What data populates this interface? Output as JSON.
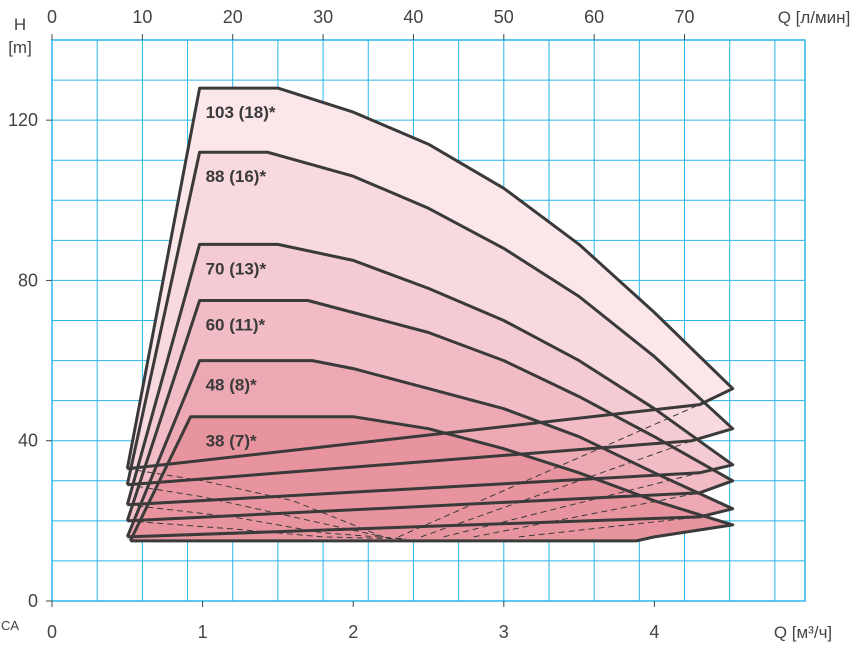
{
  "chart_data": {
    "type": "area",
    "x_label": "Q [м³/ч]",
    "x2_label": "Q [л/мин]",
    "y_label_top": "H",
    "y_label_unit": "[m]",
    "corner_label": "CA",
    "x_range": [
      0,
      5
    ],
    "y_range": [
      0,
      140
    ],
    "x_ticks": [
      "0",
      "1",
      "2",
      "3",
      "4"
    ],
    "x_tick_values": [
      0,
      1,
      2,
      3,
      4
    ],
    "x2_ticks": [
      "0",
      "10",
      "20",
      "30",
      "40",
      "50",
      "60",
      "70"
    ],
    "x2_tick_values": [
      0,
      10,
      20,
      30,
      40,
      50,
      60,
      70
    ],
    "y_ticks": [
      "0",
      "40",
      "80",
      "120"
    ],
    "y_tick_values": [
      0,
      40,
      80,
      120
    ],
    "grid": true,
    "colors": {
      "grid": "#29b6e8",
      "curve": "#3a3a3a",
      "fill_light": "#f8dde3",
      "fill_dark": "#e8909c"
    },
    "series": [
      {
        "name": "103 (18)*",
        "fill": "#fbe6ea",
        "points": [
          [
            0.5,
            33
          ],
          [
            0.98,
            128
          ],
          [
            1.5,
            128
          ],
          [
            2.0,
            122
          ],
          [
            2.5,
            114
          ],
          [
            3.0,
            103
          ],
          [
            3.5,
            89
          ],
          [
            4.0,
            72
          ],
          [
            4.52,
            53
          ],
          [
            4.3,
            49
          ],
          [
            0.5,
            33
          ]
        ]
      },
      {
        "name": "88 (16)*",
        "fill": "#f8d9df",
        "points": [
          [
            0.5,
            29
          ],
          [
            0.98,
            112
          ],
          [
            1.43,
            112
          ],
          [
            2.0,
            106
          ],
          [
            2.5,
            98
          ],
          [
            3.0,
            88
          ],
          [
            3.5,
            76
          ],
          [
            4.0,
            61
          ],
          [
            4.52,
            43
          ],
          [
            4.25,
            40
          ],
          [
            0.5,
            29
          ]
        ]
      },
      {
        "name": "70 (13)*",
        "fill": "#f5cbd3",
        "points": [
          [
            0.5,
            24
          ],
          [
            0.98,
            89
          ],
          [
            1.5,
            89
          ],
          [
            2.0,
            85
          ],
          [
            2.5,
            78
          ],
          [
            3.0,
            70
          ],
          [
            3.5,
            60
          ],
          [
            4.0,
            48
          ],
          [
            4.52,
            34
          ],
          [
            4.3,
            32
          ],
          [
            0.5,
            24
          ]
        ]
      },
      {
        "name": "60 (11)*",
        "fill": "#f1bcc5",
        "points": [
          [
            0.5,
            20
          ],
          [
            0.98,
            75
          ],
          [
            1.7,
            75
          ],
          [
            2.0,
            72
          ],
          [
            2.5,
            67
          ],
          [
            3.0,
            60
          ],
          [
            3.5,
            51
          ],
          [
            4.0,
            41
          ],
          [
            4.52,
            30
          ],
          [
            4.3,
            27
          ],
          [
            0.5,
            20
          ]
        ]
      },
      {
        "name": "48 (8)*",
        "fill": "#eca9b4",
        "points": [
          [
            0.5,
            16
          ],
          [
            0.98,
            60
          ],
          [
            1.73,
            60
          ],
          [
            2.0,
            58
          ],
          [
            2.5,
            53
          ],
          [
            3.0,
            48
          ],
          [
            3.5,
            41
          ],
          [
            4.0,
            32
          ],
          [
            4.52,
            23
          ],
          [
            4.3,
            21
          ],
          [
            0.5,
            16
          ]
        ]
      },
      {
        "name": "38 (7)*",
        "fill": "#e8949f",
        "points": [
          [
            0.52,
            15
          ],
          [
            0.92,
            46
          ],
          [
            2.0,
            46
          ],
          [
            2.5,
            43
          ],
          [
            3.0,
            38
          ],
          [
            3.5,
            32
          ],
          [
            4.0,
            25
          ],
          [
            4.52,
            19
          ],
          [
            4.0,
            16
          ],
          [
            3.88,
            15
          ],
          [
            0.52,
            15
          ]
        ]
      }
    ],
    "dashed_lines": [
      {
        "points": [
          [
            0.5,
            33
          ],
          [
            1.0,
            30
          ],
          [
            1.6,
            25
          ],
          [
            2.2,
            16
          ]
        ]
      },
      {
        "points": [
          [
            0.5,
            29
          ],
          [
            1.0,
            26
          ],
          [
            1.6,
            21
          ],
          [
            2.2,
            16
          ]
        ]
      },
      {
        "points": [
          [
            0.5,
            24
          ],
          [
            1.2,
            21
          ],
          [
            1.8,
            17
          ],
          [
            2.35,
            15.5
          ]
        ]
      },
      {
        "points": [
          [
            0.5,
            20
          ],
          [
            1.2,
            18
          ],
          [
            1.8,
            16
          ],
          [
            2.35,
            15.5
          ]
        ]
      },
      {
        "points": [
          [
            2.3,
            16
          ],
          [
            4.3,
            49
          ]
        ]
      },
      {
        "points": [
          [
            2.45,
            16
          ],
          [
            4.25,
            40
          ]
        ]
      },
      {
        "points": [
          [
            2.6,
            16
          ],
          [
            4.3,
            32
          ]
        ]
      },
      {
        "points": [
          [
            2.8,
            16
          ],
          [
            4.3,
            27
          ]
        ]
      },
      {
        "points": [
          [
            3.1,
            16
          ],
          [
            4.3,
            21
          ]
        ]
      }
    ]
  }
}
